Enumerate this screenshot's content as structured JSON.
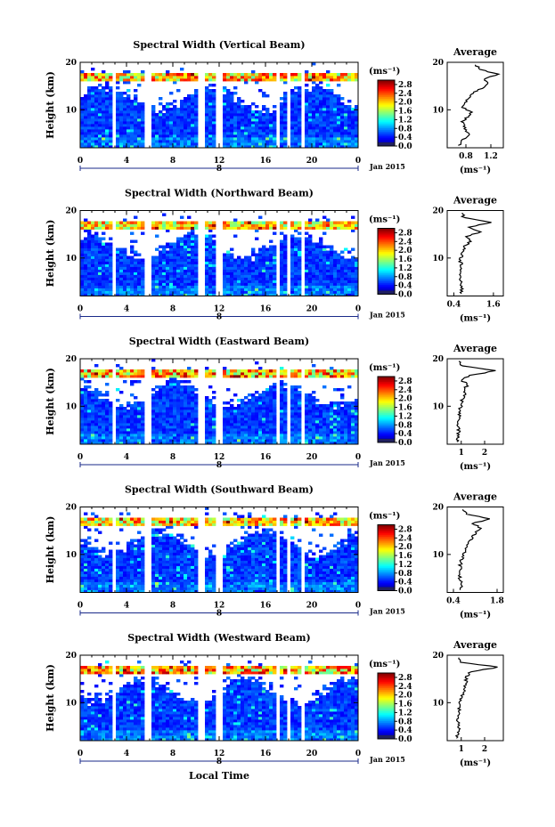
{
  "chart_data": [
    {
      "type": "heatmap",
      "title": "Spectral Width (Vertical Beam)",
      "ylabel": "Height (km)",
      "x_ticks": [
        "0",
        "4",
        "8",
        "12",
        "16",
        "20",
        "0"
      ],
      "xlim": [
        0,
        24
      ],
      "y_ticks": [
        "20",
        "10"
      ],
      "ylim": [
        2,
        20
      ],
      "day_label": "8",
      "date_label": "Jan 2015",
      "colorbar": {
        "unit": "(ms⁻¹)",
        "ticks": [
          "2.8",
          "2.4",
          "2.0",
          "1.6",
          "1.2",
          "0.8",
          "0.4",
          "0.0"
        ],
        "range": [
          0.0,
          3.0
        ]
      },
      "gaps_hours": [
        [
          2.9,
          3.2
        ],
        [
          5.4,
          6.0
        ],
        [
          10.1,
          10.8
        ],
        [
          11.6,
          12.2
        ],
        [
          17.0,
          17.3
        ],
        [
          17.8,
          18.1
        ],
        [
          18.4,
          18.6
        ],
        [
          19.2,
          19.5
        ]
      ],
      "average": {
        "title": "Average",
        "xlabel": "(ms⁻¹)",
        "x_ticks": [
          "0.8",
          "1.2"
        ],
        "xlim": [
          0.5,
          1.4
        ],
        "y_ticks": [
          "20",
          "10"
        ],
        "ylim": [
          2,
          20
        ],
        "heights": [
          2.5,
          3.5,
          4.5,
          5.5,
          6.5,
          7.5,
          8.5,
          9.5,
          10.5,
          11.5,
          12.5,
          13.5,
          14.5,
          15.5,
          16.5,
          17.5,
          18.5,
          19.5
        ],
        "values": [
          0.7,
          0.72,
          0.85,
          0.8,
          0.78,
          0.75,
          0.82,
          0.88,
          0.76,
          0.8,
          0.85,
          0.9,
          1.05,
          1.15,
          1.1,
          1.3,
          1.05,
          0.95
        ]
      }
    },
    {
      "type": "heatmap",
      "title": "Spectral Width (Northward Beam)",
      "ylabel": "Height (km)",
      "x_ticks": [
        "0",
        "4",
        "8",
        "12",
        "16",
        "20",
        "0"
      ],
      "xlim": [
        0,
        24
      ],
      "y_ticks": [
        "20",
        "10"
      ],
      "ylim": [
        2,
        20
      ],
      "day_label": "8",
      "date_label": "Jan 2015",
      "colorbar": {
        "unit": "(ms⁻¹)",
        "ticks": [
          "2.8",
          "2.4",
          "2.0",
          "1.6",
          "1.2",
          "0.8",
          "0.4",
          "0.0"
        ],
        "range": [
          0.0,
          3.0
        ]
      },
      "gaps_hours": [
        [
          2.9,
          3.2
        ],
        [
          5.4,
          6.0
        ],
        [
          10.1,
          10.8
        ],
        [
          11.6,
          12.2
        ],
        [
          17.0,
          17.3
        ],
        [
          17.8,
          18.1
        ],
        [
          18.4,
          18.6
        ],
        [
          19.2,
          19.5
        ]
      ],
      "average": {
        "title": "Average",
        "xlabel": "(ms⁻¹)",
        "x_ticks": [
          "0.4",
          "1.6"
        ],
        "xlim": [
          0.2,
          1.9
        ],
        "y_ticks": [
          "20",
          "10"
        ],
        "ylim": [
          2,
          20
        ],
        "heights": [
          2.5,
          3.5,
          4.5,
          5.5,
          6.5,
          7.5,
          8.5,
          9.5,
          10.5,
          11.5,
          12.5,
          13.5,
          14.5,
          15.5,
          16.5,
          17.5,
          18.5,
          19.5
        ],
        "values": [
          0.6,
          0.65,
          0.62,
          0.6,
          0.58,
          0.6,
          0.62,
          0.6,
          0.65,
          0.7,
          0.72,
          0.9,
          0.8,
          1.2,
          0.9,
          1.5,
          0.7,
          0.65
        ]
      }
    },
    {
      "type": "heatmap",
      "title": "Spectral Width (Eastward Beam)",
      "ylabel": "Height (km)",
      "x_ticks": [
        "0",
        "4",
        "8",
        "12",
        "16",
        "20",
        "0"
      ],
      "xlim": [
        0,
        24
      ],
      "y_ticks": [
        "20",
        "10"
      ],
      "ylim": [
        2,
        20
      ],
      "day_label": "8",
      "date_label": "Jan 2015",
      "colorbar": {
        "unit": "(ms⁻¹)",
        "ticks": [
          "2.8",
          "2.4",
          "2.0",
          "1.6",
          "1.2",
          "0.8",
          "0.4",
          "0.0"
        ],
        "range": [
          0.0,
          3.0
        ]
      },
      "gaps_hours": [
        [
          2.9,
          3.2
        ],
        [
          5.4,
          6.0
        ],
        [
          10.1,
          10.8
        ],
        [
          11.6,
          12.2
        ],
        [
          17.0,
          17.3
        ],
        [
          17.8,
          18.1
        ],
        [
          18.4,
          18.6
        ],
        [
          19.2,
          19.5
        ]
      ],
      "average": {
        "title": "Average",
        "xlabel": "(ms⁻¹)",
        "x_ticks": [
          "1",
          "2"
        ],
        "xlim": [
          0.4,
          2.8
        ],
        "y_ticks": [
          "20",
          "10"
        ],
        "ylim": [
          2,
          20
        ],
        "heights": [
          2.5,
          3.5,
          4.5,
          5.5,
          6.5,
          7.5,
          8.5,
          9.5,
          10.5,
          11.5,
          12.5,
          13.5,
          14.5,
          15.5,
          16.5,
          17.5,
          18.5,
          19.5
        ],
        "values": [
          0.8,
          0.85,
          0.9,
          0.88,
          0.85,
          0.9,
          0.92,
          0.95,
          1.0,
          1.05,
          1.2,
          1.1,
          1.3,
          1.0,
          1.4,
          2.5,
          1.0,
          0.9
        ]
      }
    },
    {
      "type": "heatmap",
      "title": "Spectral Width (Southward Beam)",
      "ylabel": "Height (km)",
      "x_ticks": [
        "0",
        "4",
        "8",
        "12",
        "16",
        "20",
        "0"
      ],
      "xlim": [
        0,
        24
      ],
      "y_ticks": [
        "20",
        "10"
      ],
      "ylim": [
        2,
        20
      ],
      "day_label": "8",
      "date_label": "Jan 2015",
      "colorbar": {
        "unit": "(ms⁻¹)",
        "ticks": [
          "2.8",
          "2.4",
          "2.0",
          "1.6",
          "1.2",
          "0.8",
          "0.4",
          "0.0"
        ],
        "range": [
          0.0,
          3.0
        ]
      },
      "gaps_hours": [
        [
          2.9,
          3.2
        ],
        [
          5.4,
          6.0
        ],
        [
          10.1,
          10.8
        ],
        [
          11.6,
          12.2
        ],
        [
          17.0,
          17.3
        ],
        [
          17.8,
          18.1
        ],
        [
          18.4,
          18.6
        ],
        [
          19.2,
          19.5
        ]
      ],
      "average": {
        "title": "Average",
        "xlabel": "(ms⁻¹)",
        "x_ticks": [
          "0.4",
          "1.8"
        ],
        "xlim": [
          0.2,
          2.0
        ],
        "y_ticks": [
          "20",
          "10"
        ],
        "ylim": [
          2,
          20
        ],
        "heights": [
          2.5,
          3.5,
          4.5,
          5.5,
          6.5,
          7.5,
          8.5,
          9.5,
          10.5,
          11.5,
          12.5,
          13.5,
          14.5,
          15.5,
          16.5,
          17.5,
          18.5,
          19.5
        ],
        "values": [
          0.6,
          0.65,
          0.62,
          0.6,
          0.62,
          0.6,
          0.65,
          0.7,
          0.75,
          0.8,
          0.85,
          1.0,
          1.1,
          1.3,
          1.0,
          1.6,
          0.8,
          0.7
        ]
      }
    },
    {
      "type": "heatmap",
      "title": "Spectral Width (Westward Beam)",
      "ylabel": "Height (km)",
      "x_ticks": [
        "0",
        "4",
        "8",
        "12",
        "16",
        "20",
        "0"
      ],
      "xlim": [
        0,
        24
      ],
      "y_ticks": [
        "20",
        "10"
      ],
      "ylim": [
        2,
        20
      ],
      "day_label": "8",
      "date_label": "Jan 2015",
      "colorbar": {
        "unit": "(ms⁻¹)",
        "ticks": [
          "2.8",
          "2.4",
          "2.0",
          "1.6",
          "1.2",
          "0.8",
          "0.4",
          "0.0"
        ],
        "range": [
          0.0,
          3.0
        ]
      },
      "gaps_hours": [
        [
          2.9,
          3.2
        ],
        [
          5.4,
          6.0
        ],
        [
          10.1,
          10.8
        ],
        [
          11.6,
          12.2
        ],
        [
          17.0,
          17.3
        ],
        [
          17.8,
          18.1
        ],
        [
          18.4,
          18.6
        ],
        [
          19.2,
          19.5
        ]
      ],
      "average": {
        "title": "Average",
        "xlabel": "(ms⁻¹)",
        "x_ticks": [
          "1",
          "2"
        ],
        "xlim": [
          0.4,
          2.8
        ],
        "y_ticks": [
          "20",
          "10"
        ],
        "ylim": [
          2,
          20
        ],
        "heights": [
          2.5,
          3.5,
          4.5,
          5.5,
          6.5,
          7.5,
          8.5,
          9.5,
          10.5,
          11.5,
          12.5,
          13.5,
          14.5,
          15.5,
          16.5,
          17.5,
          18.5,
          19.5
        ],
        "values": [
          0.8,
          0.85,
          0.9,
          0.88,
          0.85,
          0.9,
          0.92,
          0.95,
          1.0,
          1.05,
          1.1,
          1.15,
          1.2,
          1.25,
          1.4,
          2.6,
          1.0,
          0.9
        ]
      }
    }
  ],
  "footer": {
    "xlabel": "Local Time"
  },
  "colors": {
    "axis": "#000000",
    "background": "#ffffff",
    "gap": "#ffffff"
  }
}
